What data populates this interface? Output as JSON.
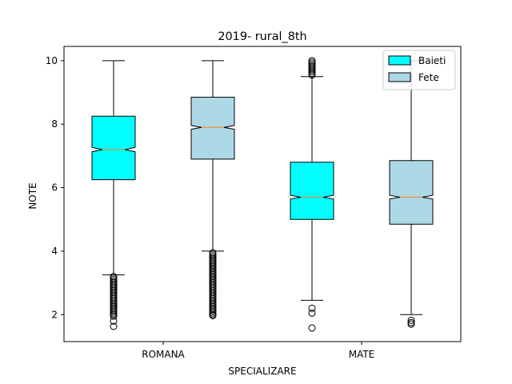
{
  "chart_data": {
    "type": "box",
    "title": "2019- rural_8th",
    "xlabel": "SPECIALIZARE",
    "ylabel": "NOTE",
    "ylim": [
      1.15,
      10.45
    ],
    "yticks": [
      2,
      4,
      6,
      8,
      10
    ],
    "ytick_labels": [
      "2",
      "4",
      "6",
      "8",
      "10"
    ],
    "categories": [
      "ROMANA",
      "MATE"
    ],
    "notched": true,
    "grid": false,
    "legend_position": "top-right",
    "series": [
      {
        "name": "Baieti",
        "color": "#00ffff",
        "boxes": [
          {
            "category": "ROMANA",
            "whisker_low": 3.25,
            "q1": 6.25,
            "median": 7.2,
            "q3": 8.25,
            "whisker_high": 10.0,
            "notch_low": 7.13,
            "notch_high": 7.27,
            "fliers": [
              3.2,
              3.15,
              3.1,
              3.05,
              3.0,
              2.95,
              2.9,
              2.85,
              2.8,
              2.75,
              2.7,
              2.65,
              2.6,
              2.55,
              2.5,
              2.45,
              2.4,
              2.35,
              2.3,
              2.25,
              2.2,
              2.15,
              2.1,
              2.05,
              2.0,
              1.95,
              1.8,
              1.63
            ]
          },
          {
            "category": "MATE",
            "whisker_low": 2.45,
            "q1": 5.0,
            "median": 5.7,
            "q3": 6.8,
            "whisker_high": 9.5,
            "notch_low": 5.64,
            "notch_high": 5.76,
            "fliers": [
              2.2,
              2.05,
              1.58,
              9.55,
              9.6,
              9.65,
              9.7,
              9.75,
              9.8,
              9.85,
              9.9,
              9.95,
              10.0
            ]
          }
        ]
      },
      {
        "name": "Fete",
        "color": "#add8e6",
        "boxes": [
          {
            "category": "ROMANA",
            "whisker_low": 4.0,
            "q1": 6.9,
            "median": 7.9,
            "q3": 8.85,
            "whisker_high": 10.0,
            "notch_low": 7.84,
            "notch_high": 7.96,
            "fliers": [
              3.95,
              3.9,
              3.85,
              3.8,
              3.75,
              3.7,
              3.65,
              3.6,
              3.55,
              3.5,
              3.45,
              3.4,
              3.35,
              3.3,
              3.25,
              3.2,
              3.15,
              3.1,
              3.05,
              3.0,
              2.95,
              2.9,
              2.85,
              2.8,
              2.75,
              2.7,
              2.65,
              2.6,
              2.55,
              2.5,
              2.45,
              2.4,
              2.35,
              2.3,
              2.25,
              2.2,
              2.15,
              2.1,
              2.05,
              2.0,
              1.97
            ]
          },
          {
            "category": "MATE",
            "whisker_low": 2.0,
            "q1": 4.85,
            "median": 5.7,
            "q3": 6.85,
            "whisker_high": 10.0,
            "notch_low": 5.64,
            "notch_high": 5.76,
            "fliers": [
              1.82,
              1.75,
              1.7
            ]
          }
        ]
      }
    ]
  }
}
